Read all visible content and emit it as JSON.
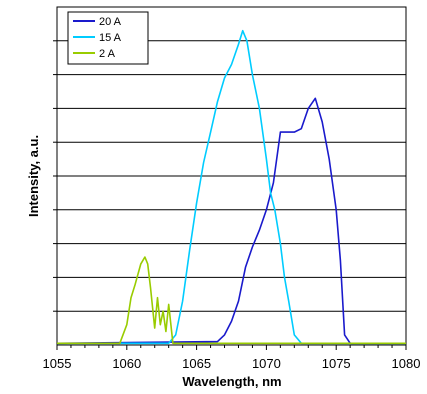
{
  "chart_data": {
    "type": "line",
    "title": "",
    "xlabel": "Wavelength, nm",
    "ylabel": "Intensity, a.u.",
    "xlim": [
      1055,
      1080
    ],
    "ylim": [
      0,
      10
    ],
    "x_ticks": [
      1055,
      1060,
      1065,
      1070,
      1075,
      1080
    ],
    "y_gridlines": 10,
    "grid": true,
    "legend_position": "top-left",
    "series": [
      {
        "name": "20 A",
        "color": "#1a1acc",
        "x": [
          1055,
          1066.5,
          1067,
          1067.5,
          1068,
          1068.5,
          1069,
          1069.5,
          1070,
          1070.5,
          1071,
          1071.5,
          1072,
          1072.5,
          1073,
          1073.5,
          1074,
          1074.5,
          1075,
          1075.3,
          1075.6,
          1076,
          1080
        ],
        "y": [
          0.05,
          0.1,
          0.3,
          0.7,
          1.3,
          2.3,
          2.9,
          3.4,
          4.0,
          4.8,
          6.3,
          6.3,
          6.3,
          6.4,
          7.0,
          7.3,
          6.6,
          5.5,
          4.0,
          2.5,
          0.3,
          0.05,
          0.05
        ]
      },
      {
        "name": "15 A",
        "color": "#00ccff",
        "x": [
          1055,
          1063,
          1063.5,
          1064,
          1064.5,
          1065,
          1065.5,
          1066,
          1066.5,
          1067,
          1067.5,
          1068,
          1068.3,
          1068.6,
          1069,
          1069.5,
          1070,
          1070.3,
          1070.6,
          1071,
          1071.3,
          1071.6,
          1072,
          1072.5,
          1080
        ],
        "y": [
          0.05,
          0.05,
          0.3,
          1.3,
          2.8,
          4.2,
          5.4,
          6.3,
          7.2,
          7.9,
          8.3,
          8.9,
          9.3,
          9.0,
          8.0,
          7.0,
          5.5,
          4.5,
          4.0,
          3.0,
          2.0,
          1.3,
          0.3,
          0.05,
          0.05
        ]
      },
      {
        "name": "2 A",
        "color": "#99cc00",
        "x": [
          1055,
          1059.5,
          1060,
          1060.3,
          1060.6,
          1061,
          1061.3,
          1061.5,
          1061.7,
          1062,
          1062.2,
          1062.4,
          1062.6,
          1062.8,
          1063,
          1063.3,
          1080
        ],
        "y": [
          0.05,
          0.05,
          0.6,
          1.4,
          1.8,
          2.4,
          2.6,
          2.4,
          1.7,
          0.5,
          1.4,
          0.6,
          1.0,
          0.4,
          1.2,
          0.05,
          0.05
        ]
      }
    ]
  }
}
